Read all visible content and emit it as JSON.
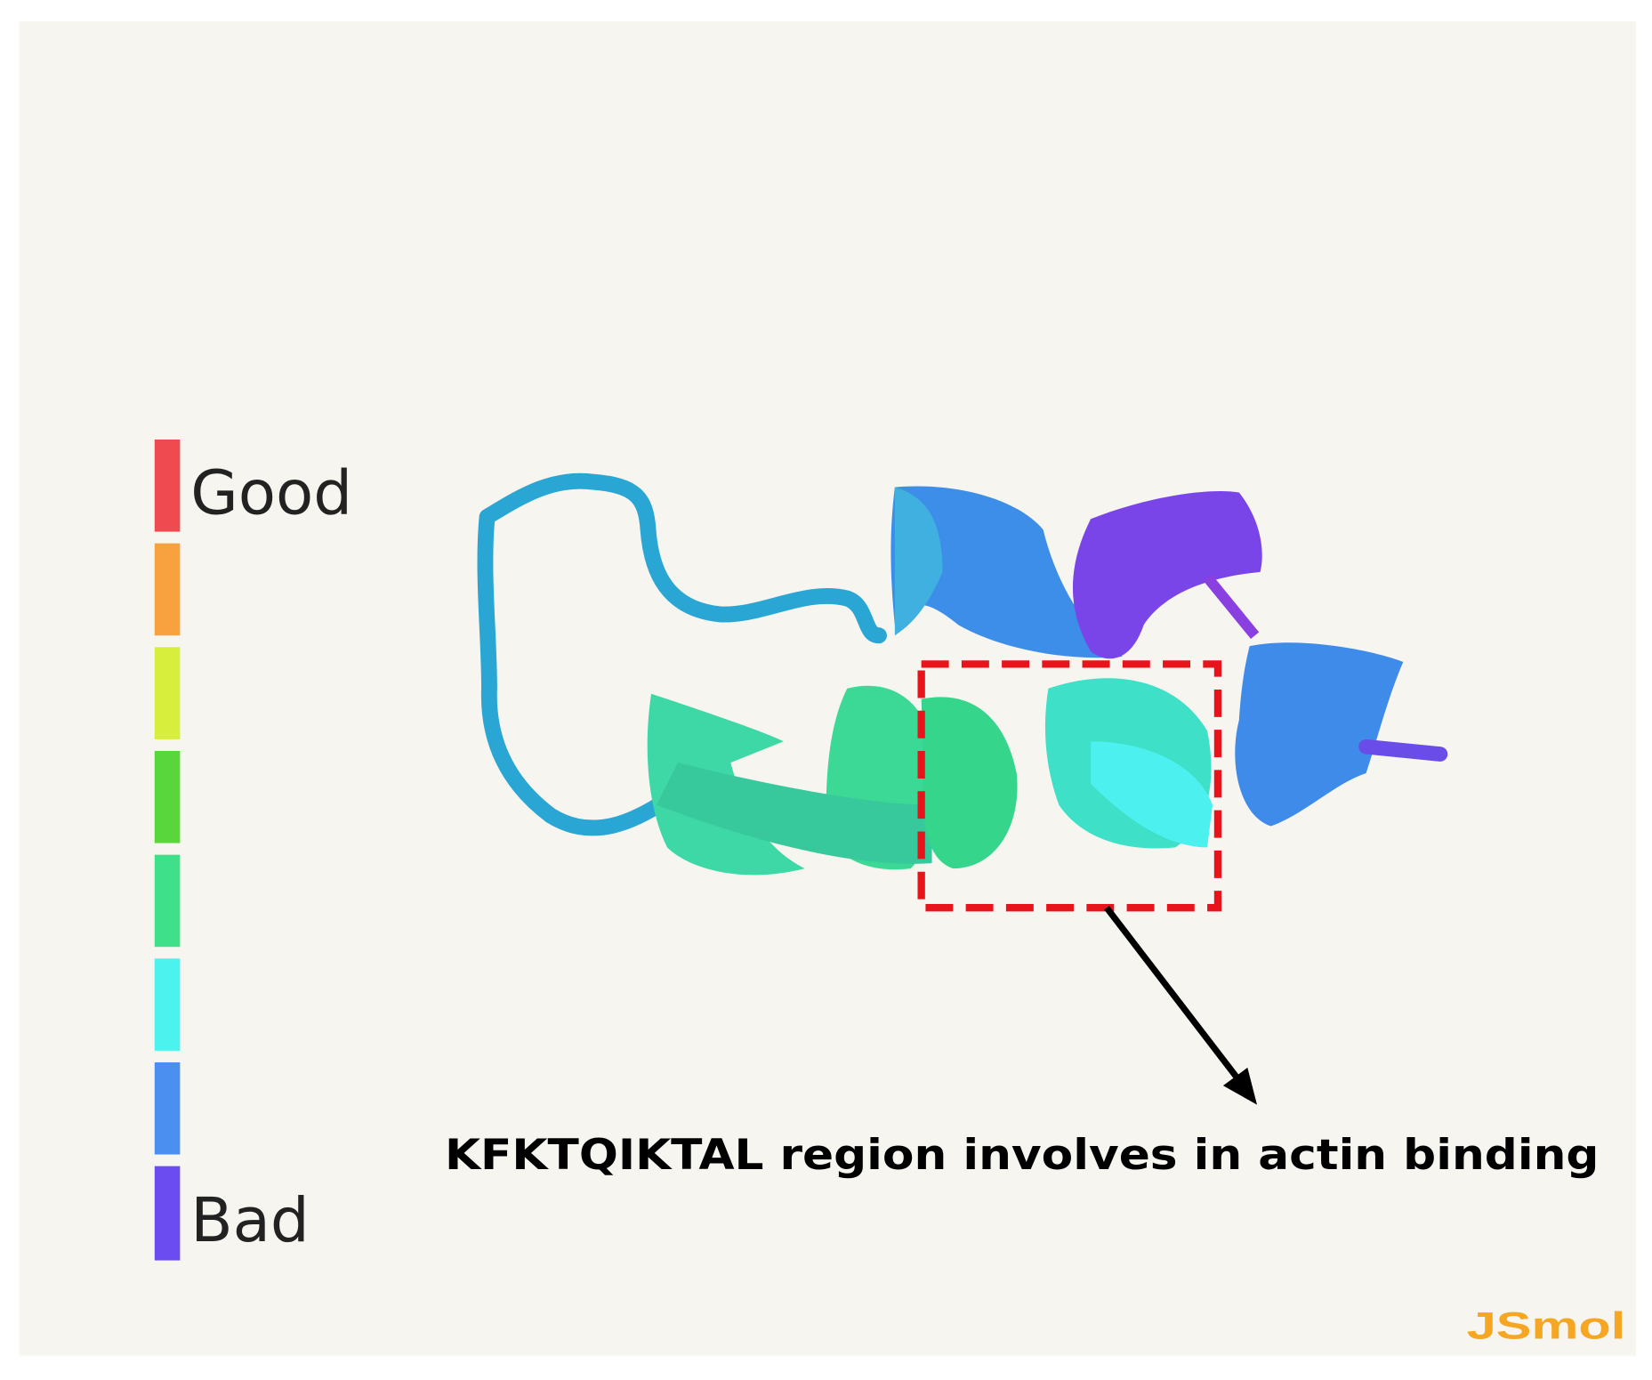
{
  "legend": {
    "top": "Good",
    "bottom": "Bad"
  },
  "annotation": "KFKTQIKTAL  region involves in actin binding",
  "watermark": "JSmol"
}
